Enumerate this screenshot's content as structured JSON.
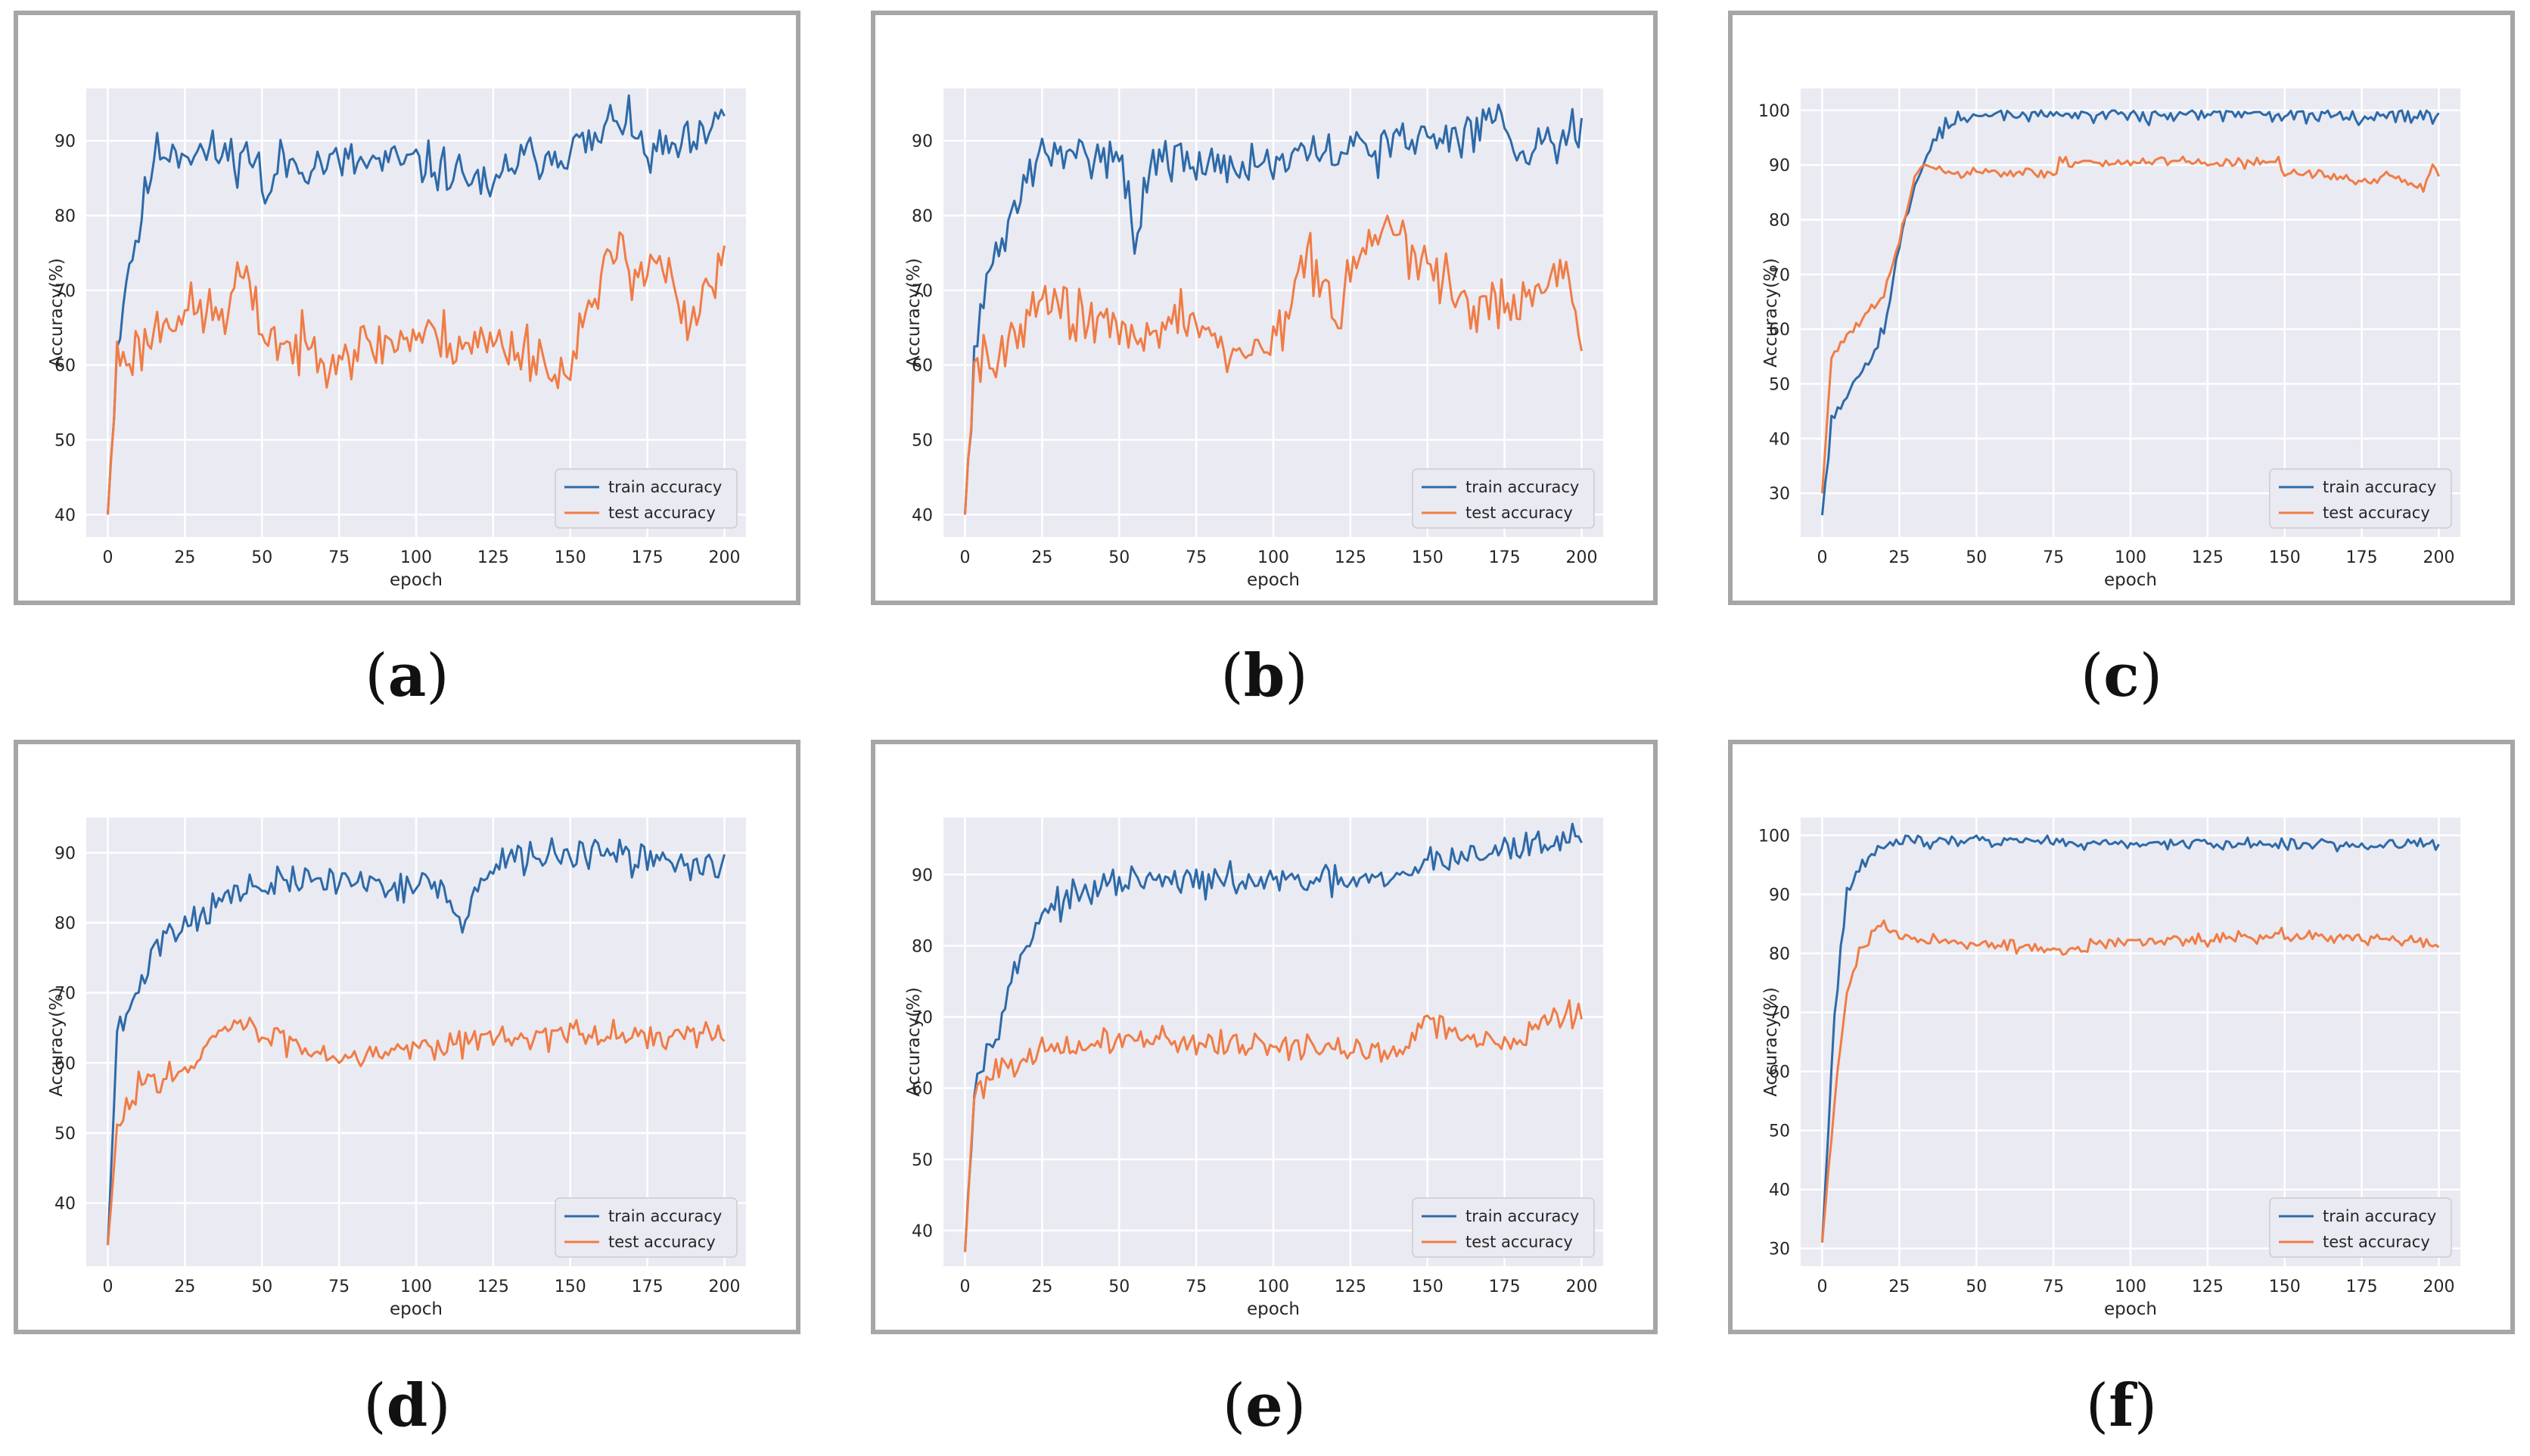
{
  "figure": {
    "background": "#ffffff",
    "frame_color": "#a6a6a6",
    "plot_bg": "#eaeaf2",
    "grid_color": "#ffffff"
  },
  "colors": {
    "train": "#2d6aa8",
    "test": "#f07c45"
  },
  "chart_data": [
    {
      "id": "a",
      "caption": "a",
      "type": "line",
      "xlabel": "epoch",
      "ylabel": "Accuracy(%)",
      "xlim": [
        -7,
        207
      ],
      "ylim": [
        37,
        97
      ],
      "xticks": [
        0,
        25,
        50,
        75,
        100,
        125,
        150,
        175,
        200
      ],
      "yticks": [
        40,
        50,
        60,
        70,
        80,
        90
      ],
      "legend": {
        "position": "lower-right",
        "entries": [
          "train accuracy",
          "test accuracy"
        ]
      },
      "series": [
        {
          "name": "train accuracy",
          "color": "#2d6aa8",
          "keyframes": [
            [
              0,
              40
            ],
            [
              3,
              62
            ],
            [
              6,
              72
            ],
            [
              10,
              78
            ],
            [
              15,
              88
            ],
            [
              20,
              89
            ],
            [
              40,
              88
            ],
            [
              49,
              88
            ],
            [
              51,
              80
            ],
            [
              55,
              87
            ],
            [
              100,
              87
            ],
            [
              120,
              85
            ],
            [
              124,
              82
            ],
            [
              130,
              87
            ],
            [
              160,
              90
            ],
            [
              165,
              94
            ],
            [
              175,
              88
            ],
            [
              185,
              89
            ],
            [
              195,
              90
            ],
            [
              200,
              94.5
            ]
          ],
          "noise": 2.6,
          "seed": 11
        },
        {
          "name": "test accuracy",
          "color": "#f07c45",
          "keyframes": [
            [
              0,
              40
            ],
            [
              3,
              61
            ],
            [
              10,
              62
            ],
            [
              20,
              67
            ],
            [
              40,
              67
            ],
            [
              42,
              73
            ],
            [
              50,
              65
            ],
            [
              60,
              62
            ],
            [
              80,
              62
            ],
            [
              100,
              64
            ],
            [
              140,
              62
            ],
            [
              146,
              57
            ],
            [
              150,
              62
            ],
            [
              160,
              70
            ],
            [
              166,
              77
            ],
            [
              170,
              73
            ],
            [
              180,
              74
            ],
            [
              188,
              64
            ],
            [
              195,
              70
            ],
            [
              200,
              73.5
            ]
          ],
          "noise": 3.2,
          "seed": 23
        }
      ]
    },
    {
      "id": "b",
      "caption": "b",
      "type": "line",
      "xlabel": "epoch",
      "ylabel": "Accuracy(%)",
      "xlim": [
        -7,
        207
      ],
      "ylim": [
        37,
        97
      ],
      "xticks": [
        0,
        25,
        50,
        75,
        100,
        125,
        150,
        175,
        200
      ],
      "yticks": [
        40,
        50,
        60,
        70,
        80,
        90
      ],
      "legend": {
        "position": "lower-right",
        "entries": [
          "train accuracy",
          "test accuracy"
        ]
      },
      "series": [
        {
          "name": "train accuracy",
          "color": "#2d6aa8",
          "keyframes": [
            [
              0,
              40
            ],
            [
              3,
              62
            ],
            [
              8,
              72
            ],
            [
              15,
              80
            ],
            [
              22,
              87
            ],
            [
              45,
              89
            ],
            [
              50,
              88
            ],
            [
              56,
              77
            ],
            [
              60,
              87
            ],
            [
              100,
              87
            ],
            [
              130,
              89
            ],
            [
              160,
              91
            ],
            [
              172,
              93
            ],
            [
              180,
              89
            ],
            [
              200,
              92
            ]
          ],
          "noise": 2.6,
          "seed": 31
        },
        {
          "name": "test accuracy",
          "color": "#f07c45",
          "keyframes": [
            [
              0,
              40
            ],
            [
              3,
              62
            ],
            [
              10,
              60
            ],
            [
              20,
              68
            ],
            [
              40,
              67
            ],
            [
              55,
              62
            ],
            [
              70,
              67
            ],
            [
              85,
              62
            ],
            [
              100,
              63
            ],
            [
              112,
              75
            ],
            [
              120,
              66
            ],
            [
              135,
              80
            ],
            [
              145,
              75
            ],
            [
              160,
              68
            ],
            [
              180,
              68
            ],
            [
              196,
              73
            ],
            [
              200,
              60.5
            ]
          ],
          "noise": 3.2,
          "seed": 43
        }
      ]
    },
    {
      "id": "c",
      "caption": "c",
      "type": "line",
      "xlabel": "epoch",
      "ylabel": "Accuracy(%)",
      "xlim": [
        -7,
        207
      ],
      "ylim": [
        22,
        104
      ],
      "xticks": [
        0,
        25,
        50,
        75,
        100,
        125,
        150,
        175,
        200
      ],
      "yticks": [
        30,
        40,
        50,
        60,
        70,
        80,
        90,
        100
      ],
      "legend": {
        "position": "lower-right",
        "entries": [
          "train accuracy",
          "test accuracy"
        ]
      },
      "series": [
        {
          "name": "train accuracy",
          "color": "#2d6aa8",
          "keyframes": [
            [
              0,
              26
            ],
            [
              3,
              44
            ],
            [
              10,
              50
            ],
            [
              20,
              60
            ],
            [
              25,
              75
            ],
            [
              30,
              86
            ],
            [
              35,
              94
            ],
            [
              42,
              98
            ],
            [
              60,
              99.3
            ],
            [
              200,
              99.3
            ]
          ],
          "noise": 1.4,
          "seed": 53,
          "max": 100
        },
        {
          "name": "test accuracy",
          "color": "#f07c45",
          "keyframes": [
            [
              0,
              30
            ],
            [
              3,
              55
            ],
            [
              10,
              60
            ],
            [
              20,
              66
            ],
            [
              25,
              76
            ],
            [
              30,
              88
            ],
            [
              33,
              90
            ],
            [
              40,
              88.5
            ],
            [
              76,
              88.5
            ],
            [
              77,
              90.5
            ],
            [
              148,
              90.5
            ],
            [
              149,
              88.5
            ],
            [
              160,
              88.5
            ],
            [
              172,
              87
            ],
            [
              185,
              88
            ],
            [
              195,
              86
            ],
            [
              198,
              90
            ],
            [
              200,
              88.5
            ]
          ],
          "noise": 0.8,
          "seed": 61
        }
      ]
    },
    {
      "id": "d",
      "caption": "d",
      "type": "line",
      "xlabel": "epoch",
      "ylabel": "Accuracy(%)",
      "xlim": [
        -7,
        207
      ],
      "ylim": [
        31,
        95
      ],
      "xticks": [
        0,
        25,
        50,
        75,
        100,
        125,
        150,
        175,
        200
      ],
      "yticks": [
        40,
        50,
        60,
        70,
        80,
        90
      ],
      "legend": {
        "position": "lower-right",
        "entries": [
          "train accuracy",
          "test accuracy"
        ]
      },
      "series": [
        {
          "name": "train accuracy",
          "color": "#2d6aa8",
          "keyframes": [
            [
              0,
              34
            ],
            [
              3,
              64
            ],
            [
              10,
              70
            ],
            [
              15,
              77
            ],
            [
              25,
              80
            ],
            [
              40,
              84
            ],
            [
              60,
              86
            ],
            [
              80,
              86
            ],
            [
              110,
              85
            ],
            [
              113,
              79
            ],
            [
              120,
              85
            ],
            [
              130,
              89
            ],
            [
              150,
              90
            ],
            [
              200,
              88
            ]
          ],
          "noise": 1.9,
          "seed": 71
        },
        {
          "name": "test accuracy",
          "color": "#f07c45",
          "keyframes": [
            [
              0,
              34
            ],
            [
              3,
              50
            ],
            [
              10,
              57
            ],
            [
              20,
              59
            ],
            [
              25,
              58
            ],
            [
              40,
              66
            ],
            [
              50,
              64
            ],
            [
              75,
              61
            ],
            [
              110,
              63
            ],
            [
              140,
              64
            ],
            [
              170,
              64
            ],
            [
              200,
              63.5
            ]
          ],
          "noise": 1.6,
          "seed": 83
        }
      ]
    },
    {
      "id": "e",
      "caption": "e",
      "type": "line",
      "xlabel": "epoch",
      "ylabel": "Accuracy(%)",
      "xlim": [
        -7,
        207
      ],
      "ylim": [
        35,
        98
      ],
      "xticks": [
        0,
        25,
        50,
        75,
        100,
        125,
        150,
        175,
        200
      ],
      "yticks": [
        40,
        50,
        60,
        70,
        80,
        90
      ],
      "legend": {
        "position": "lower-right",
        "entries": [
          "train accuracy",
          "test accuracy"
        ]
      },
      "series": [
        {
          "name": "train accuracy",
          "color": "#2d6aa8",
          "keyframes": [
            [
              0,
              37
            ],
            [
              3,
              61
            ],
            [
              8,
              66
            ],
            [
              15,
              75
            ],
            [
              25,
              85
            ],
            [
              50,
              89
            ],
            [
              100,
              89
            ],
            [
              140,
              89
            ],
            [
              150,
              92
            ],
            [
              170,
              93
            ],
            [
              200,
              95.5
            ]
          ],
          "noise": 1.7,
          "seed": 97
        },
        {
          "name": "test accuracy",
          "color": "#f07c45",
          "keyframes": [
            [
              0,
              37
            ],
            [
              3,
              59
            ],
            [
              8,
              62
            ],
            [
              15,
              64
            ],
            [
              40,
              66
            ],
            [
              50,
              67
            ],
            [
              100,
              66
            ],
            [
              140,
              65
            ],
            [
              150,
              70
            ],
            [
              160,
              67
            ],
            [
              180,
              67
            ],
            [
              190,
              70
            ],
            [
              200,
              70
            ]
          ],
          "noise": 1.6,
          "seed": 101
        }
      ]
    },
    {
      "id": "f",
      "caption": "f",
      "type": "line",
      "xlabel": "epoch",
      "ylabel": "Accuracy(%)",
      "xlim": [
        -7,
        207
      ],
      "ylim": [
        27,
        103
      ],
      "xticks": [
        0,
        25,
        50,
        75,
        100,
        125,
        150,
        175,
        200
      ],
      "yticks": [
        30,
        40,
        50,
        60,
        70,
        80,
        90,
        100
      ],
      "legend": {
        "position": "lower-right",
        "entries": [
          "train accuracy",
          "test accuracy"
        ]
      },
      "series": [
        {
          "name": "train accuracy",
          "color": "#2d6aa8",
          "keyframes": [
            [
              0,
              31
            ],
            [
              4,
              70
            ],
            [
              8,
              91
            ],
            [
              15,
              96
            ],
            [
              22,
              99
            ],
            [
              50,
              99.2
            ],
            [
              100,
              98.5
            ],
            [
              150,
              98.5
            ],
            [
              200,
              98.5
            ]
          ],
          "noise": 0.9,
          "seed": 113,
          "max": 100
        },
        {
          "name": "test accuracy",
          "color": "#f07c45",
          "keyframes": [
            [
              0,
              31
            ],
            [
              4,
              55
            ],
            [
              8,
              74
            ],
            [
              12,
              80
            ],
            [
              18,
              85
            ],
            [
              25,
              83
            ],
            [
              50,
              81.5
            ],
            [
              80,
              80.5
            ],
            [
              100,
              82
            ],
            [
              150,
              83
            ],
            [
              180,
              82.5
            ],
            [
              200,
              81.5
            ]
          ],
          "noise": 0.9,
          "seed": 127
        }
      ]
    }
  ]
}
